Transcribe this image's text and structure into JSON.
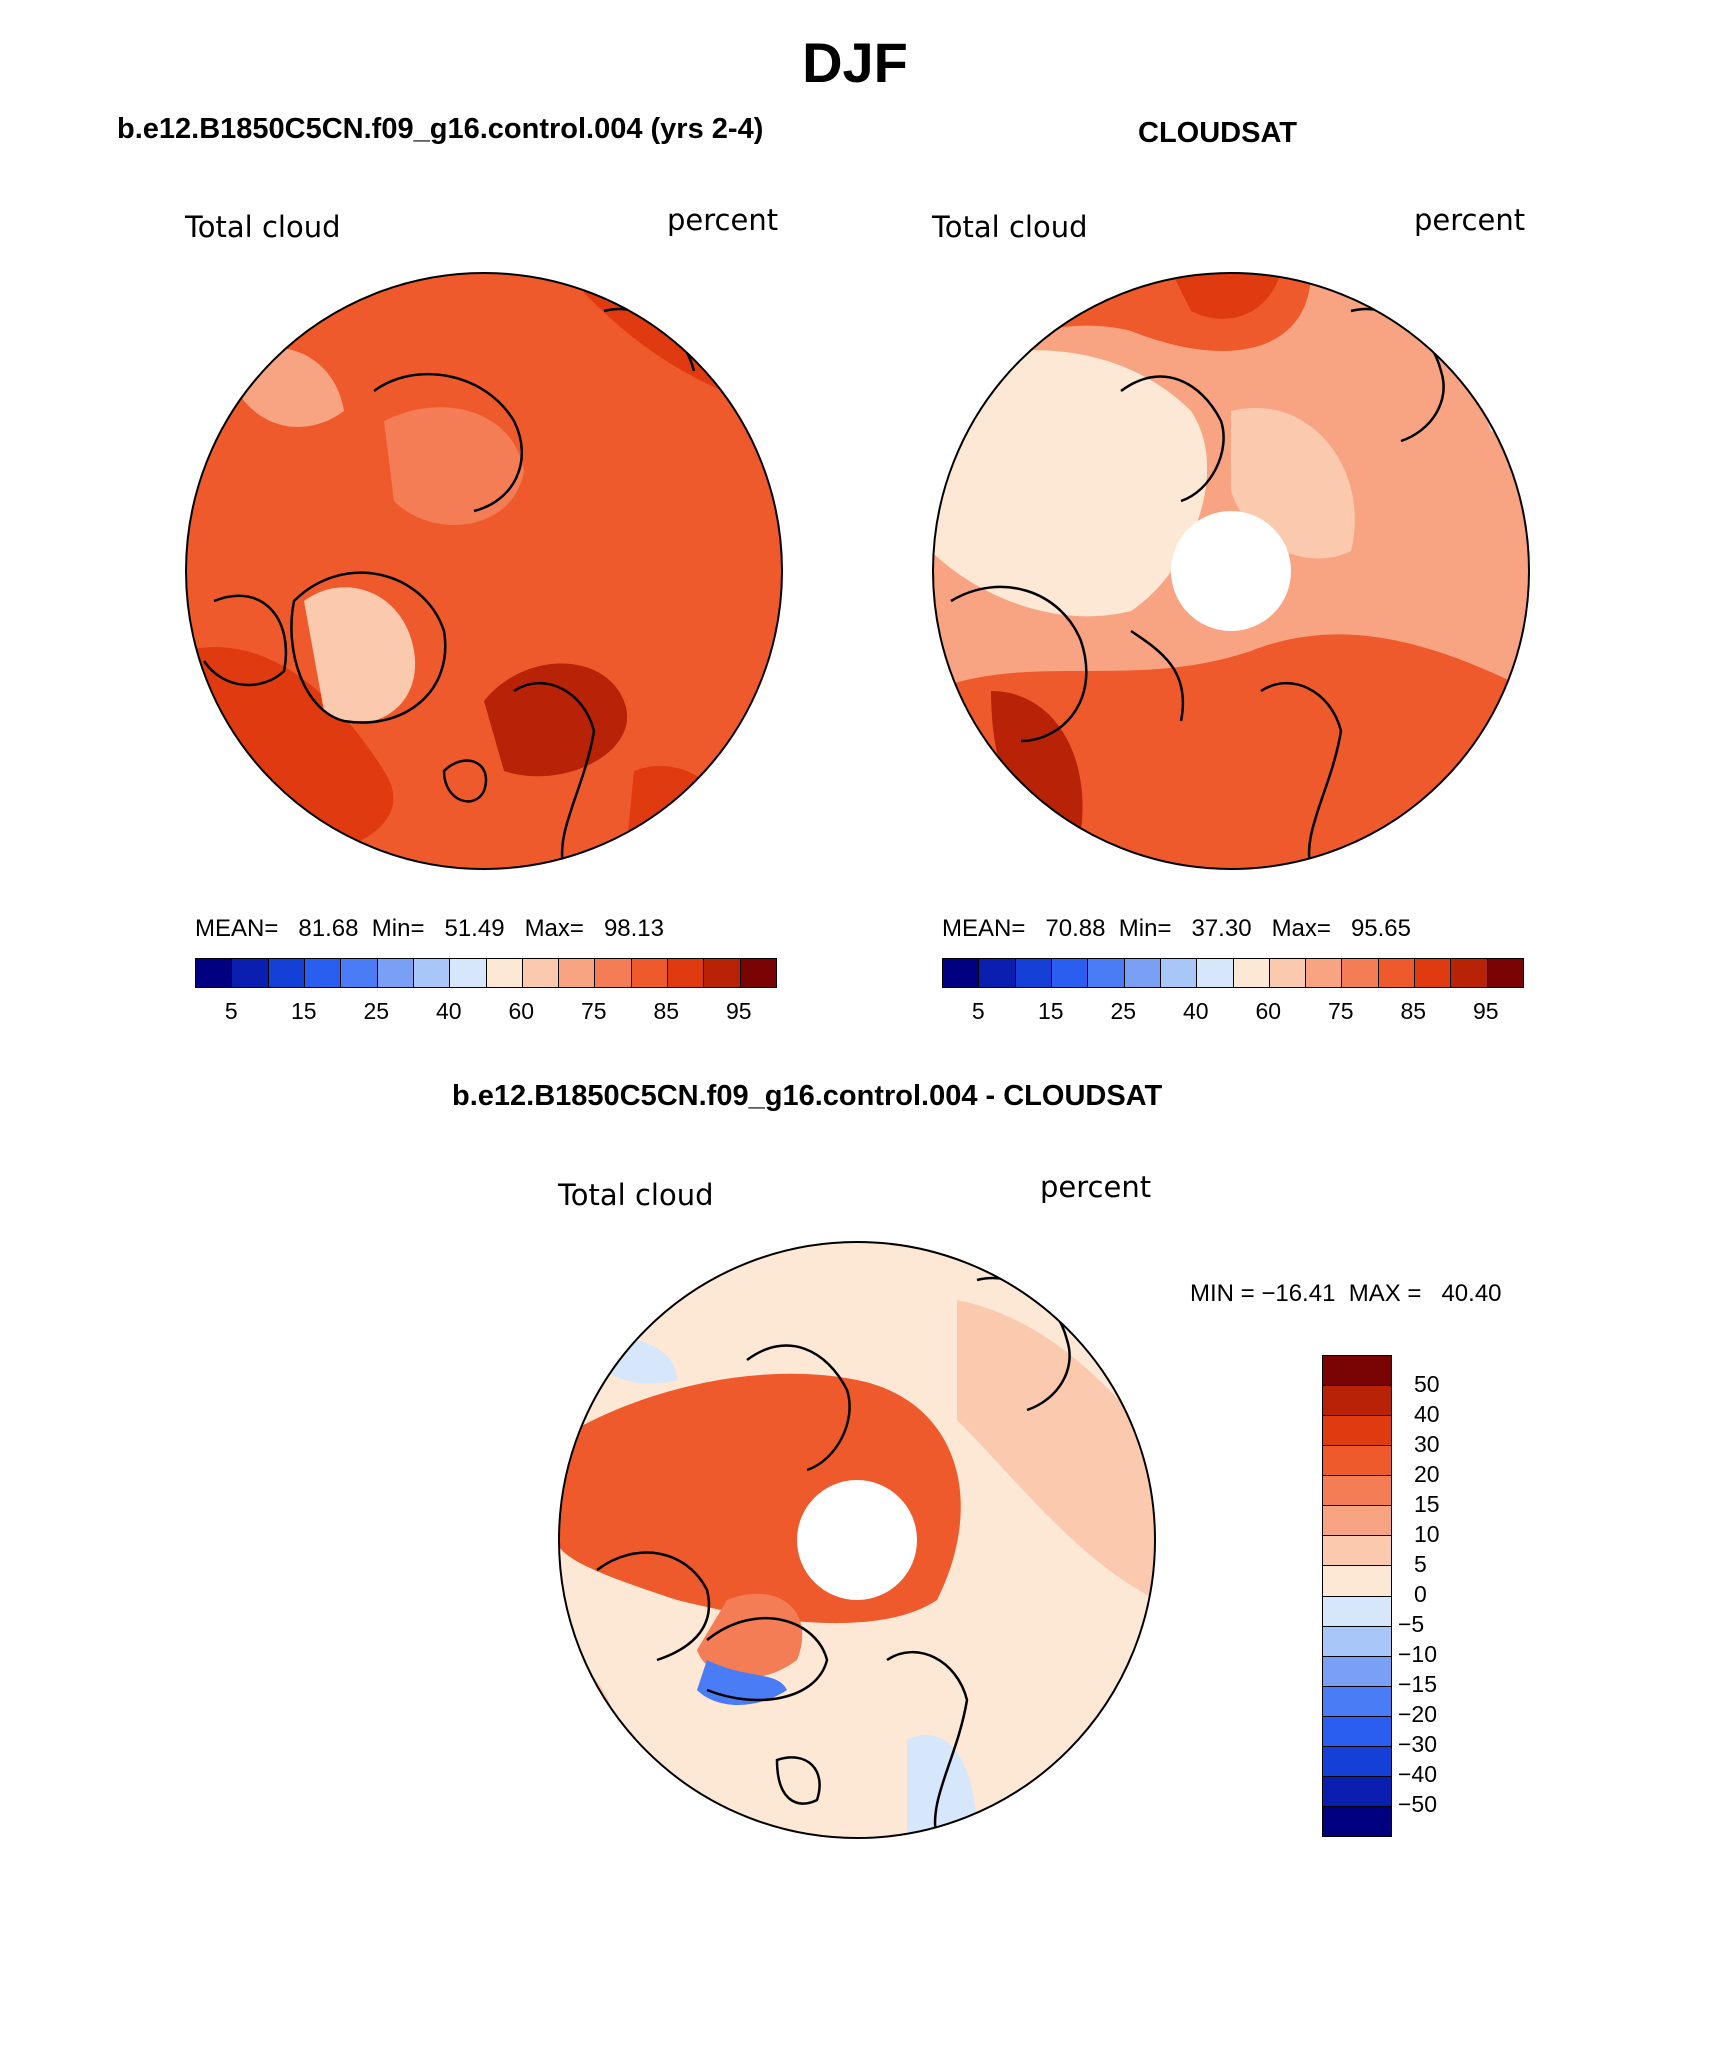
{
  "title": "DJF",
  "panels": [
    {
      "id": "model",
      "header": "b.e12.B1850C5CN.f09_g16.control.004 (yrs 2-4)",
      "var_label": "Total cloud",
      "units_label": "percent",
      "stats": {
        "mean_label": "MEAN=",
        "mean": "81.68",
        "min_label": "Min=",
        "min": "51.49",
        "max_label": "Max=",
        "max": "98.13"
      }
    },
    {
      "id": "obs",
      "header": "CLOUDSAT",
      "var_label": "Total cloud",
      "units_label": "percent",
      "stats": {
        "mean_label": "MEAN=",
        "mean": "70.88",
        "min_label": "Min=",
        "min": "37.30",
        "max_label": "Max=",
        "max": "95.65"
      }
    }
  ],
  "colorbar_top": {
    "colors": [
      "#000080",
      "#0a1fb0",
      "#1440d8",
      "#2a5ef0",
      "#4a7cf5",
      "#7aa0f6",
      "#a9c6f8",
      "#d6e6fb",
      "#fde8d6",
      "#fbc9ad",
      "#f8a482",
      "#f47d55",
      "#ee5a2c",
      "#df3a10",
      "#b82206",
      "#7a0404"
    ],
    "tick_labels": [
      "5",
      "15",
      "25",
      "40",
      "60",
      "75",
      "85",
      "95"
    ]
  },
  "diff_panel": {
    "header": "b.e12.B1850C5CN.f09_g16.control.004 - CLOUDSAT",
    "var_label": "Total cloud",
    "units_label": "percent",
    "minmax": "MIN = −16.41  MAX =   40.40",
    "colorbar": {
      "colors": [
        "#7a0404",
        "#b82206",
        "#df3a10",
        "#ee5a2c",
        "#f47d55",
        "#f8a482",
        "#fbc9ad",
        "#fde8d6",
        "#d6e6fb",
        "#a9c6f8",
        "#7aa0f6",
        "#4a7cf5",
        "#2a5ef0",
        "#1440d8",
        "#0a1fb0",
        "#000080"
      ],
      "labels": [
        "50",
        "40",
        "30",
        "20",
        "15",
        "10",
        "5",
        "0",
        "−5",
        "−10",
        "−15",
        "−20",
        "−30",
        "−40",
        "−50"
      ]
    }
  }
}
